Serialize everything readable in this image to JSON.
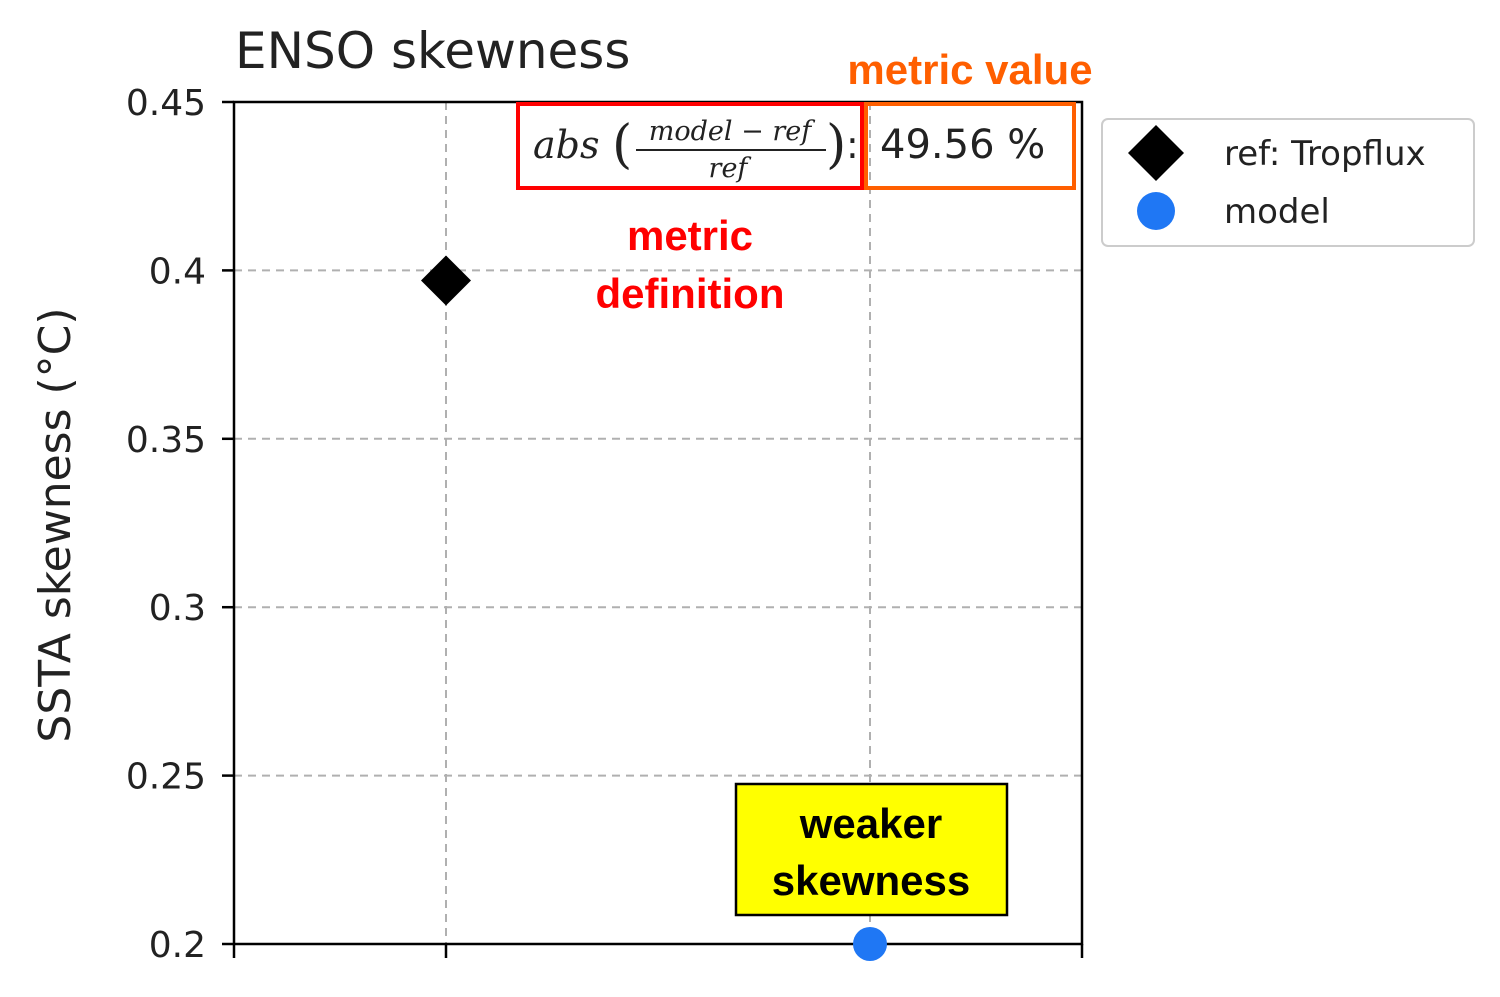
{
  "chart_data": {
    "type": "scatter",
    "title": "ENSO skewness",
    "ylabel": "SSTA skewness (°C)",
    "xlabel": "",
    "ylim": [
      0.2,
      0.45
    ],
    "xlim": [
      0,
      4
    ],
    "yticks": [
      0.2,
      0.25,
      0.3,
      0.35,
      0.4,
      0.45
    ],
    "ytick_labels": [
      "0.2",
      "0.25",
      "0.3",
      "0.35",
      "0.4",
      "0.45"
    ],
    "grid": true,
    "legend_placement": "outside-right-top",
    "series": [
      {
        "name": "ref: Tropflux",
        "marker": "diamond",
        "color": "#000000",
        "x": [
          1
        ],
        "y": [
          0.397
        ]
      },
      {
        "name": "model",
        "marker": "circle",
        "color": "#1f77f4",
        "x": [
          3
        ],
        "y": [
          0.2
        ]
      }
    ],
    "metric": {
      "definition": {
        "fn": "abs",
        "numerator": "model − ref",
        "denominator": "ref"
      },
      "value": "49.56 %"
    }
  },
  "annotations": {
    "metric_value_label": "metric value",
    "metric_definition_line1": "metric",
    "metric_definition_line2": "definition",
    "weaker_line1": "weaker",
    "weaker_line2": "skewness"
  },
  "colors": {
    "definition_red": "#ff0000",
    "value_orange": "#ff5f00",
    "box_yellow": "#ffff00"
  }
}
